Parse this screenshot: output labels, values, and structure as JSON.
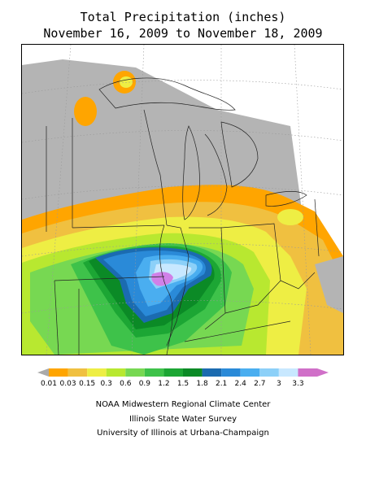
{
  "header": {
    "title": "Total Precipitation (inches)",
    "date_range": "November 16, 2009 to November 18, 2009"
  },
  "legend": {
    "bins": [
      {
        "label": "0.01",
        "color": "#ffa500"
      },
      {
        "label": "0.03",
        "color": "#f0c040"
      },
      {
        "label": "0.15",
        "color": "#eeee44"
      },
      {
        "label": "0.3",
        "color": "#b8e830"
      },
      {
        "label": "0.6",
        "color": "#77d852"
      },
      {
        "label": "0.9",
        "color": "#3ec24a"
      },
      {
        "label": "1.2",
        "color": "#1ca634"
      },
      {
        "label": "1.5",
        "color": "#0b8a26"
      },
      {
        "label": "1.8",
        "color": "#1b6bb0"
      },
      {
        "label": "2.1",
        "color": "#2a8ad8"
      },
      {
        "label": "2.4",
        "color": "#4aaef0"
      },
      {
        "label": "2.7",
        "color": "#8cd0f8"
      },
      {
        "label": "3",
        "color": "#c8e8ff"
      },
      {
        "label": "3.3",
        "color": "#d080e8"
      }
    ],
    "low_color": "#aaaaaa",
    "high_color": "#d070c8"
  },
  "credits": {
    "line1": "NOAA Midwestern Regional Climate Center",
    "line2": "Illinois State Water Survey",
    "line3": "University of Illinois at Urbana-Champaign"
  }
}
